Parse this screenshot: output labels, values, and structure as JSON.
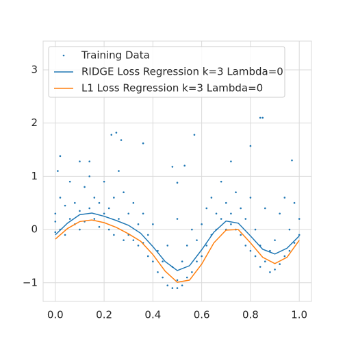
{
  "chart_data": {
    "type": "line",
    "legend": "upper left",
    "grid": true,
    "xlim": [
      -0.05,
      1.05
    ],
    "ylim": [
      -1.35,
      3.54
    ],
    "xticks": [
      {
        "value": 0,
        "label": "0.0"
      },
      {
        "value": 0.2,
        "label": "0.2"
      },
      {
        "value": 0.4,
        "label": "0.4"
      },
      {
        "value": 0.6,
        "label": "0.6"
      },
      {
        "value": 0.8,
        "label": "0.8"
      },
      {
        "value": 1,
        "label": "1.0"
      }
    ],
    "yticks": [
      {
        "value": -1,
        "label": "−1"
      },
      0,
      1,
      2,
      3
    ],
    "series": [
      {
        "name": "Training Data",
        "color": "#1f77b4",
        "type": "scatter",
        "x": [
          0.0,
          0.0,
          0.0,
          0.02,
          0.02,
          0.04,
          0.04,
          0.06,
          0.06,
          0.08,
          0.08,
          0.1,
          0.1,
          0.12,
          0.12,
          0.14,
          0.14,
          0.16,
          0.16,
          0.18,
          0.18,
          0.2,
          0.2,
          0.22,
          0.22,
          0.24,
          0.24,
          0.26,
          0.26,
          0.28,
          0.28,
          0.3,
          0.3,
          0.32,
          0.32,
          0.34,
          0.34,
          0.36,
          0.36,
          0.38,
          0.38,
          0.4,
          0.4,
          0.42,
          0.42,
          0.44,
          0.44,
          0.46,
          0.46,
          0.48,
          0.48,
          0.5,
          0.5,
          0.5,
          0.52,
          0.52,
          0.54,
          0.54,
          0.56,
          0.56,
          0.58,
          0.58,
          0.6,
          0.6,
          0.62,
          0.62,
          0.64,
          0.64,
          0.66,
          0.66,
          0.68,
          0.68,
          0.7,
          0.7,
          0.72,
          0.72,
          0.74,
          0.74,
          0.76,
          0.76,
          0.78,
          0.78,
          0.8,
          0.8,
          0.82,
          0.82,
          0.84,
          0.84,
          0.86,
          0.86,
          0.88,
          0.88,
          0.9,
          0.9,
          0.92,
          0.92,
          0.94,
          0.94,
          0.96,
          0.96,
          0.98,
          0.98,
          1.0,
          1.0,
          0.01,
          0.02,
          0.1,
          0.14,
          0.23,
          0.25,
          0.27,
          0.36,
          0.48,
          0.5,
          0.53,
          0.57,
          0.72,
          0.8,
          0.84,
          0.85,
          0.97
        ],
        "values": [
          0.15,
          -0.05,
          0.3,
          0.6,
          0.0,
          0.45,
          -0.1,
          0.9,
          0.2,
          0.1,
          0.5,
          0.35,
          0.0,
          0.8,
          0.15,
          0.4,
          1.0,
          0.2,
          0.6,
          0.05,
          0.5,
          0.3,
          0.9,
          0.0,
          0.4,
          0.6,
          -0.1,
          0.2,
          1.1,
          0.7,
          -0.2,
          0.3,
          -0.1,
          -0.2,
          0.5,
          0.1,
          -0.3,
          -0.25,
          0.3,
          -0.5,
          -0.1,
          -0.6,
          0.1,
          -0.8,
          -0.4,
          -0.9,
          -0.6,
          -1.05,
          -0.3,
          -1.1,
          -0.7,
          -0.95,
          -1.1,
          0.2,
          -1.05,
          -0.6,
          -0.9,
          -0.3,
          -0.8,
          0.0,
          -0.6,
          -0.2,
          -0.5,
          0.1,
          -0.3,
          0.4,
          -0.1,
          0.6,
          0.0,
          0.3,
          0.2,
          0.9,
          0.0,
          0.5,
          0.3,
          0.1,
          0.0,
          0.7,
          -0.1,
          0.4,
          -0.3,
          0.2,
          -0.4,
          0.6,
          -0.5,
          0.0,
          -0.7,
          -0.3,
          -0.6,
          0.4,
          -0.8,
          -0.4,
          -0.75,
          -0.2,
          -0.65,
          0.3,
          -0.5,
          0.6,
          -0.4,
          0.0,
          -0.25,
          0.5,
          -0.1,
          0.2,
          1.1,
          1.38,
          1.28,
          1.28,
          1.78,
          1.82,
          1.68,
          1.62,
          1.18,
          0.88,
          1.2,
          1.78,
          1.28,
          1.57,
          2.1,
          2.1,
          1.3
        ]
      },
      {
        "name": "RIDGE Loss Regression k=3 Lambda=0",
        "color": "#1f77b4",
        "type": "line",
        "x": [
          0,
          0.05,
          0.1,
          0.15,
          0.2,
          0.25,
          0.3,
          0.35,
          0.4,
          0.45,
          0.5,
          0.55,
          0.6,
          0.65,
          0.7,
          0.75,
          0.8,
          0.85,
          0.9,
          0.95,
          1.0
        ],
        "values": [
          -0.1,
          0.12,
          0.28,
          0.31,
          0.25,
          0.17,
          0.08,
          -0.07,
          -0.32,
          -0.6,
          -0.77,
          -0.68,
          -0.38,
          -0.05,
          0.16,
          0.12,
          -0.12,
          -0.37,
          -0.46,
          -0.35,
          -0.12
        ]
      },
      {
        "name": "L1 Loss Regression k=3 Lambda=0",
        "color": "#ff7f0e",
        "type": "line",
        "x": [
          0,
          0.05,
          0.1,
          0.15,
          0.2,
          0.25,
          0.3,
          0.35,
          0.4,
          0.45,
          0.5,
          0.55,
          0.6,
          0.65,
          0.7,
          0.75,
          0.8,
          0.85,
          0.9,
          0.95,
          1.0
        ],
        "values": [
          -0.18,
          0.02,
          0.15,
          0.18,
          0.13,
          0.04,
          -0.08,
          -0.22,
          -0.47,
          -0.78,
          -0.99,
          -0.95,
          -0.65,
          -0.25,
          -0.01,
          0.0,
          -0.25,
          -0.52,
          -0.64,
          -0.52,
          -0.2
        ]
      }
    ]
  }
}
